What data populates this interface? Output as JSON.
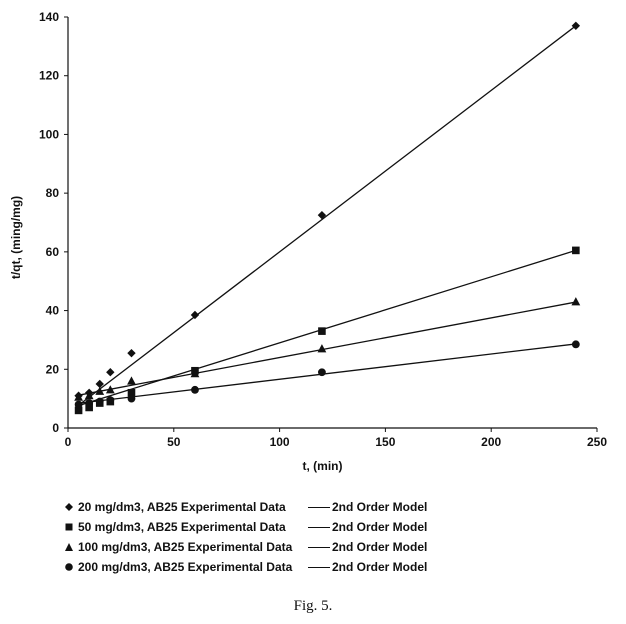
{
  "chart_data": {
    "type": "scatter",
    "title": "",
    "xlabel": "t, (min)",
    "ylabel": "t/qt, (ming/mg)",
    "xlim": [
      0,
      250
    ],
    "ylim": [
      0,
      140
    ],
    "xticks": [
      0,
      50,
      100,
      150,
      200,
      250
    ],
    "yticks": [
      0,
      20,
      40,
      60,
      80,
      100,
      120,
      140
    ],
    "grid": false,
    "legend_position": "bottom",
    "series": [
      {
        "name": "20 mg/dm3, AB25 Experimental Data",
        "marker": "diamond",
        "x": [
          5,
          10,
          15,
          20,
          30,
          60,
          120,
          240
        ],
        "y": [
          11.0,
          12.0,
          15.0,
          19.0,
          25.5,
          38.5,
          72.5,
          137.0
        ],
        "model_name": "2nd Order Model",
        "model_line": {
          "intercept": 5.0,
          "slope": 0.55
        }
      },
      {
        "name": "50 mg/dm3, AB25 Experimental Data",
        "marker": "square",
        "x": [
          5,
          10,
          15,
          20,
          30,
          60,
          120,
          240
        ],
        "y": [
          6.0,
          7.0,
          8.5,
          9.0,
          12.0,
          19.5,
          33.0,
          60.5
        ],
        "model_name": "2nd Order Model",
        "model_line": {
          "intercept": 6.5,
          "slope": 0.225
        }
      },
      {
        "name": "100 mg/dm3, AB25 Experimental Data",
        "marker": "triangle",
        "x": [
          5,
          10,
          15,
          20,
          30,
          60,
          120,
          240
        ],
        "y": [
          10.5,
          11.0,
          12.5,
          13.0,
          16.0,
          18.5,
          27.0,
          43.0
        ],
        "model_name": "2nd Order Model",
        "model_line": {
          "intercept": 10.5,
          "slope": 0.135
        }
      },
      {
        "name": "200 mg/dm3, AB25 Experimental Data",
        "marker": "circle",
        "x": [
          5,
          10,
          15,
          20,
          30,
          60,
          120,
          240
        ],
        "y": [
          8.0,
          8.5,
          9.0,
          9.5,
          10.0,
          13.0,
          19.0,
          28.5
        ],
        "model_name": "2nd Order Model",
        "model_line": {
          "intercept": 8.0,
          "slope": 0.086
        }
      }
    ]
  },
  "caption": "Fig. 5."
}
